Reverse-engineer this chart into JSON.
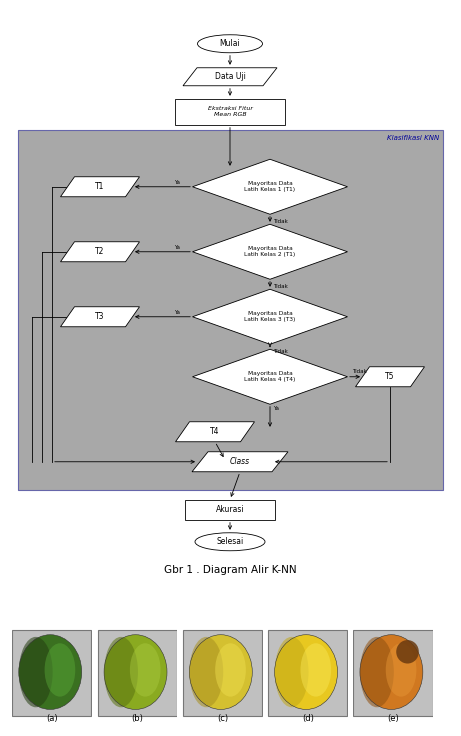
{
  "title_caption": "Gbr 1 . Diagram Alir K-NN",
  "bg_white": "#ffffff",
  "knn_bg": "#a8a8a8",
  "knn_border": "#6666aa",
  "knn_label": "Klasifikasi KNN",
  "knn_label_color": "#000099",
  "box_fill": "#ffffff",
  "box_edge": "#000000",
  "font_size": 5.5,
  "caption_fontsize": 7.5,
  "fruit_labels": [
    "(a)",
    "(b)",
    "(c)",
    "(d)",
    "(e)"
  ],
  "fruit_bodies": [
    "#3a7020",
    "#8aaa20",
    "#d4c030",
    "#e8c820",
    "#d07820"
  ],
  "fruit_shadows": [
    "#253e12",
    "#5a7210",
    "#a89020",
    "#c0a818",
    "#905010"
  ],
  "fruit_lights": [
    "#5aaa38",
    "#aaca40",
    "#f0e050",
    "#f8e858",
    "#e89838"
  ],
  "fruit_spot_color": "#6a3a10",
  "fruit_bg": "#c0c0c0"
}
